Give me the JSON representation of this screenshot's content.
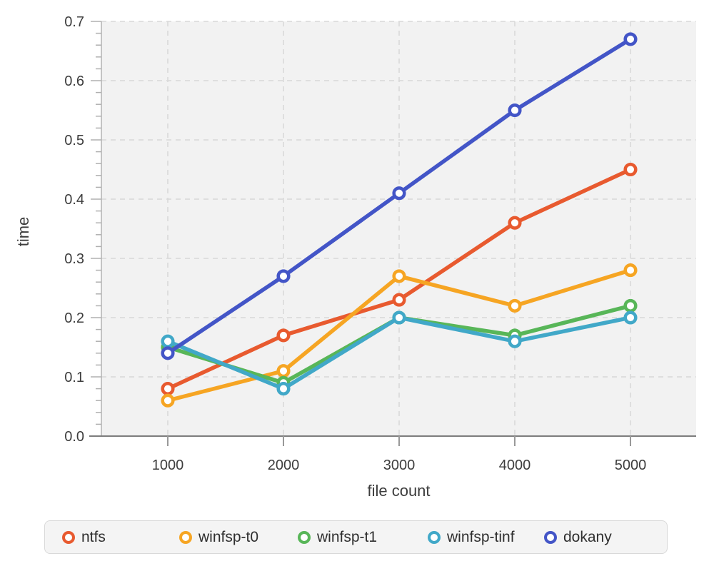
{
  "chart_data": {
    "type": "line",
    "title": "",
    "xlabel": "file count",
    "ylabel": "time",
    "x": [
      1000,
      2000,
      3000,
      4000,
      5000
    ],
    "x_tick_labels": [
      "1000",
      "2000",
      "3000",
      "4000",
      "5000"
    ],
    "y_tick_labels": [
      "0.0",
      "0.1",
      "0.2",
      "0.3",
      "0.4",
      "0.5",
      "0.6",
      "0.7"
    ],
    "ylim": [
      0,
      0.7
    ],
    "y_major_step": 0.1,
    "y_minor_step": 0.02,
    "grid": true,
    "legend_position": "bottom",
    "marker": "open-circle",
    "series": [
      {
        "name": "ntfs",
        "color": "#E85A2F",
        "values": [
          0.08,
          0.17,
          0.23,
          0.36,
          0.45
        ]
      },
      {
        "name": "winfsp-t0",
        "color": "#F6A523",
        "values": [
          0.06,
          0.11,
          0.27,
          0.22,
          0.28
        ]
      },
      {
        "name": "winfsp-t1",
        "color": "#58B658",
        "values": [
          0.15,
          0.09,
          0.2,
          0.17,
          0.22
        ]
      },
      {
        "name": "winfsp-tinf",
        "color": "#41A8C8",
        "values": [
          0.16,
          0.08,
          0.2,
          0.16,
          0.2
        ]
      },
      {
        "name": "dokany",
        "color": "#4355C7",
        "values": [
          0.14,
          0.27,
          0.41,
          0.55,
          0.67
        ]
      }
    ]
  },
  "colors": {
    "page_bg": "#ffffff",
    "plot_bg": "#f2f2f2",
    "grid": "#d8d8d8",
    "x_axis": "#7d7d7d",
    "y_axis": "#b3b3b3",
    "tick": "#b0b0b0",
    "x_tick": "#999999",
    "text": "#3d3d3d",
    "legend_bg": "#f4f4f4",
    "legend_border": "#d9d9d9"
  }
}
